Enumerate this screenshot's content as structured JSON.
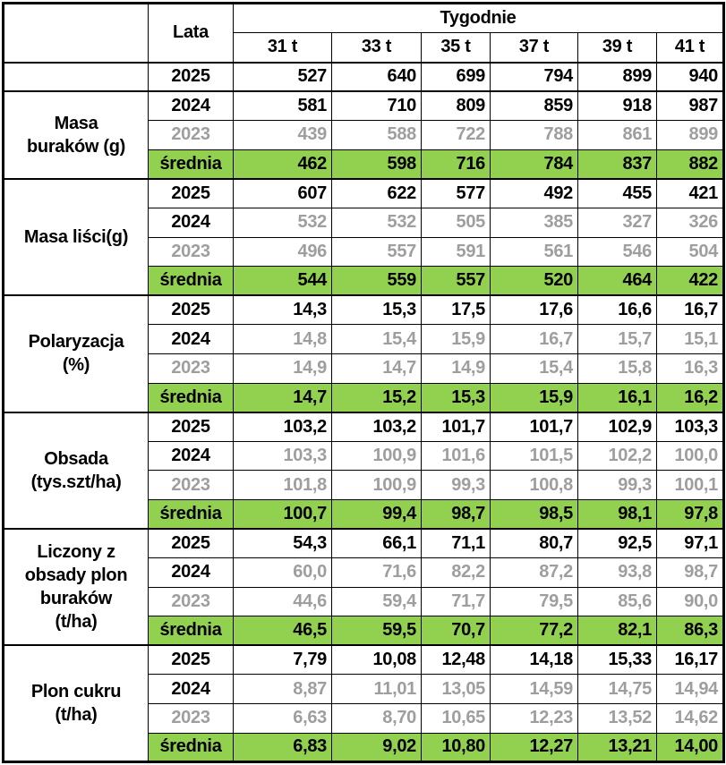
{
  "chart_data": {
    "type": "table",
    "title": "",
    "columns_header_group": "Tygodnie",
    "columns": [
      "Lata",
      "31 t",
      "33 t",
      "35 t",
      "37 t",
      "39 t",
      "41 t"
    ],
    "row_groups": [
      {
        "metric": "Masa buraków (g)",
        "rows": [
          {
            "year": "2025",
            "values": [
              527,
              640,
              699,
              794,
              899,
              940
            ]
          },
          {
            "year": "2024",
            "values": [
              581,
              710,
              809,
              859,
              918,
              987
            ]
          },
          {
            "year": "2023",
            "values": [
              439,
              588,
              722,
              788,
              861,
              899
            ]
          },
          {
            "year": "średnia",
            "values": [
              462,
              598,
              716,
              784,
              837,
              882
            ]
          }
        ]
      },
      {
        "metric": "Masa liści(g)",
        "rows": [
          {
            "year": "2025",
            "values": [
              607,
              622,
              577,
              492,
              455,
              421
            ]
          },
          {
            "year": "2024",
            "values": [
              532,
              532,
              505,
              385,
              327,
              326
            ]
          },
          {
            "year": "2023",
            "values": [
              496,
              557,
              591,
              561,
              546,
              504
            ]
          },
          {
            "year": "średnia",
            "values": [
              544,
              559,
              557,
              520,
              464,
              422
            ]
          }
        ]
      },
      {
        "metric": "Polaryzacja (%)",
        "rows": [
          {
            "year": "2025",
            "values": [
              14.3,
              15.3,
              17.5,
              17.6,
              16.6,
              16.7
            ]
          },
          {
            "year": "2024",
            "values": [
              14.8,
              15.4,
              15.9,
              16.7,
              15.7,
              15.1
            ]
          },
          {
            "year": "2023",
            "values": [
              14.9,
              14.7,
              14.9,
              15.4,
              15.8,
              16.3
            ]
          },
          {
            "year": "średnia",
            "values": [
              14.7,
              15.2,
              15.3,
              15.9,
              16.1,
              16.2
            ]
          }
        ]
      },
      {
        "metric": "Obsada (tys.szt/ha)",
        "rows": [
          {
            "year": "2025",
            "values": [
              103.2,
              103.2,
              101.7,
              101.7,
              102.9,
              103.3
            ]
          },
          {
            "year": "2024",
            "values": [
              103.3,
              100.9,
              101.6,
              101.5,
              102.2,
              100.0
            ]
          },
          {
            "year": "2023",
            "values": [
              101.8,
              100.9,
              99.3,
              100.8,
              99.3,
              100.1
            ]
          },
          {
            "year": "średnia",
            "values": [
              100.7,
              99.4,
              98.7,
              98.5,
              98.1,
              97.8
            ]
          }
        ]
      },
      {
        "metric": "Liczony z obsady plon buraków (t/ha)",
        "rows": [
          {
            "year": "2025",
            "values": [
              54.3,
              66.1,
              71.1,
              80.7,
              92.5,
              97.1
            ]
          },
          {
            "year": "2024",
            "values": [
              60.0,
              71.6,
              82.2,
              87.2,
              93.8,
              98.7
            ]
          },
          {
            "year": "2023",
            "values": [
              44.6,
              59.4,
              71.7,
              79.5,
              85.6,
              90.0
            ]
          },
          {
            "year": "średnia",
            "values": [
              46.5,
              59.5,
              70.7,
              77.2,
              82.1,
              86.3
            ]
          }
        ]
      },
      {
        "metric": "Plon cukru (t/ha)",
        "rows": [
          {
            "year": "2025",
            "values": [
              7.79,
              10.08,
              12.48,
              14.18,
              15.33,
              16.17
            ]
          },
          {
            "year": "2024",
            "values": [
              8.87,
              11.01,
              13.05,
              14.59,
              14.75,
              14.94
            ]
          },
          {
            "year": "2023",
            "values": [
              6.63,
              8.7,
              10.65,
              12.23,
              13.52,
              14.62
            ]
          },
          {
            "year": "średnia",
            "values": [
              6.83,
              9.02,
              10.8,
              12.27,
              13.21,
              14.0
            ]
          }
        ]
      }
    ]
  },
  "table": {
    "corner": "",
    "lata_header": "Lata",
    "tygodnie_header": "Tygodnie",
    "week_headers": [
      "31 t",
      "33 t",
      "35 t",
      "37 t",
      "39 t",
      "41 t"
    ],
    "colors": {
      "average_bg": "#92d050",
      "muted_text": "#9e9e9e",
      "border": "#000000",
      "text": "#000000"
    },
    "groups": [
      {
        "label": "Masa\nburaków (g)",
        "rows": [
          {
            "year": "2025",
            "style": "current",
            "values": [
              "527",
              "640",
              "699",
              "794",
              "899",
              "940"
            ]
          },
          {
            "year": "2024",
            "style": "current",
            "values": [
              "581",
              "710",
              "809",
              "859",
              "918",
              "987"
            ]
          },
          {
            "year": "2023",
            "style": "muted",
            "values": [
              "439",
              "588",
              "722",
              "788",
              "861",
              "899"
            ]
          },
          {
            "year": "średnia",
            "style": "average",
            "values": [
              "462",
              "598",
              "716",
              "784",
              "837",
              "882"
            ]
          }
        ]
      },
      {
        "label": "Masa liści(g)",
        "rows": [
          {
            "year": "2025",
            "style": "current",
            "values": [
              "607",
              "622",
              "577",
              "492",
              "455",
              "421"
            ]
          },
          {
            "year": "2024",
            "style": "mixed",
            "values": [
              "532",
              "532",
              "505",
              "385",
              "327",
              "326"
            ]
          },
          {
            "year": "2023",
            "style": "muted",
            "values": [
              "496",
              "557",
              "591",
              "561",
              "546",
              "504"
            ]
          },
          {
            "year": "średnia",
            "style": "average",
            "values": [
              "544",
              "559",
              "557",
              "520",
              "464",
              "422"
            ]
          }
        ]
      },
      {
        "label": "Polaryzacja\n(%)",
        "rows": [
          {
            "year": "2025",
            "style": "current",
            "values": [
              "14,3",
              "15,3",
              "17,5",
              "17,6",
              "16,6",
              "16,7"
            ]
          },
          {
            "year": "2024",
            "style": "mixed",
            "values": [
              "14,8",
              "15,4",
              "15,9",
              "16,7",
              "15,7",
              "15,1"
            ]
          },
          {
            "year": "2023",
            "style": "muted",
            "values": [
              "14,9",
              "14,7",
              "14,9",
              "15,4",
              "15,8",
              "16,3"
            ]
          },
          {
            "year": "średnia",
            "style": "average",
            "values": [
              "14,7",
              "15,2",
              "15,3",
              "15,9",
              "16,1",
              "16,2"
            ]
          }
        ]
      },
      {
        "label": "Obsada\n(tys.szt/ha)",
        "rows": [
          {
            "year": "2025",
            "style": "current",
            "values": [
              "103,2",
              "103,2",
              "101,7",
              "101,7",
              "102,9",
              "103,3"
            ]
          },
          {
            "year": "2024",
            "style": "mixed",
            "values": [
              "103,3",
              "100,9",
              "101,6",
              "101,5",
              "102,2",
              "100,0"
            ]
          },
          {
            "year": "2023",
            "style": "muted",
            "values": [
              "101,8",
              "100,9",
              "99,3",
              "100,8",
              "99,3",
              "100,1"
            ]
          },
          {
            "year": "średnia",
            "style": "average",
            "values": [
              "100,7",
              "99,4",
              "98,7",
              "98,5",
              "98,1",
              "97,8"
            ]
          }
        ]
      },
      {
        "label": "Liczony z\nobsady plon\nburaków\n(t/ha)",
        "rows": [
          {
            "year": "2025",
            "style": "current",
            "values": [
              "54,3",
              "66,1",
              "71,1",
              "80,7",
              "92,5",
              "97,1"
            ]
          },
          {
            "year": "2024",
            "style": "mixed",
            "values": [
              "60,0",
              "71,6",
              "82,2",
              "87,2",
              "93,8",
              "98,7"
            ]
          },
          {
            "year": "2023",
            "style": "muted",
            "values": [
              "44,6",
              "59,4",
              "71,7",
              "79,5",
              "85,6",
              "90,0"
            ]
          },
          {
            "year": "średnia",
            "style": "average",
            "values": [
              "46,5",
              "59,5",
              "70,7",
              "77,2",
              "82,1",
              "86,3"
            ]
          }
        ]
      },
      {
        "label": "Plon cukru\n(t/ha)",
        "rows": [
          {
            "year": "2025",
            "style": "current",
            "values": [
              "7,79",
              "10,08",
              "12,48",
              "14,18",
              "15,33",
              "16,17"
            ]
          },
          {
            "year": "2024",
            "style": "mixed",
            "values": [
              "8,87",
              "11,01",
              "13,05",
              "14,59",
              "14,75",
              "14,94"
            ]
          },
          {
            "year": "2023",
            "style": "muted",
            "values": [
              "6,63",
              "8,70",
              "10,65",
              "12,23",
              "13,52",
              "14,62"
            ]
          },
          {
            "year": "średnia",
            "style": "average",
            "values": [
              "6,83",
              "9,02",
              "10,80",
              "12,27",
              "13,21",
              "14,00"
            ]
          }
        ]
      }
    ]
  }
}
